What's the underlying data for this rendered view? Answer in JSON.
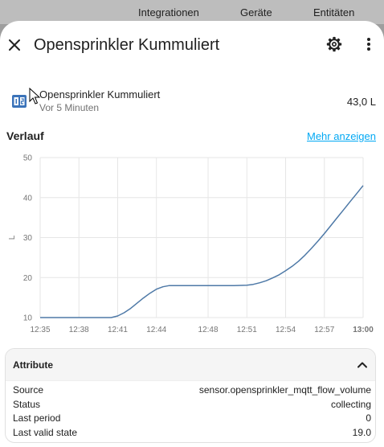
{
  "background_tabs": [
    "Integrationen",
    "Geräte",
    "Entitäten"
  ],
  "dialog": {
    "title": "Opensprinkler Kummuliert",
    "close_icon": "close-icon",
    "settings_icon": "gear-icon",
    "more_icon": "more-vert-icon"
  },
  "entity": {
    "icon": "meter-icon",
    "name": "Opensprinkler Kummuliert",
    "last_changed": "Vor 5 Minuten",
    "state": "43,0 L"
  },
  "history": {
    "title": "Verlauf",
    "more_link": "Mehr anzeigen"
  },
  "chart_data": {
    "type": "line",
    "ylabel": "L",
    "ylim": [
      10,
      50
    ],
    "yticks": [
      10,
      20,
      30,
      40,
      50
    ],
    "xlim": [
      0,
      25
    ],
    "xticks": [
      {
        "t": 0,
        "label": "12:35"
      },
      {
        "t": 3,
        "label": "12:38"
      },
      {
        "t": 6,
        "label": "12:41"
      },
      {
        "t": 9,
        "label": "12:44"
      },
      {
        "t": 13,
        "label": "12:48"
      },
      {
        "t": 16,
        "label": "12:51"
      },
      {
        "t": 19,
        "label": "12:54"
      },
      {
        "t": 22,
        "label": "12:57"
      },
      {
        "t": 25,
        "label": "13:00",
        "bold": true
      }
    ],
    "grid": true,
    "line_color": "#4e79a7",
    "series": [
      {
        "x": [
          0,
          5.5,
          6,
          6.5,
          7,
          7.5,
          8,
          8.5,
          9,
          9.5,
          10,
          11,
          12,
          13,
          14,
          15,
          16,
          16.5,
          17,
          17.5,
          18,
          18.5,
          19,
          19.5,
          20,
          20.5,
          21,
          21.5,
          22,
          22.5,
          23,
          23.5,
          24,
          24.5,
          25
        ],
        "y": [
          10,
          10,
          10.4,
          11.2,
          12.3,
          13.6,
          14.9,
          16.1,
          17.1,
          17.7,
          18,
          18,
          18,
          18,
          18,
          18,
          18.1,
          18.3,
          18.7,
          19.2,
          19.9,
          20.7,
          21.7,
          22.8,
          24.1,
          25.6,
          27.3,
          29.1,
          31,
          33,
          35,
          37,
          39,
          41,
          43
        ]
      }
    ]
  },
  "attributes": {
    "title": "Attribute",
    "chevron_icon": "chevron-up-icon",
    "rows": [
      {
        "key": "Source",
        "value": "sensor.opensprinkler_mqtt_flow_volume"
      },
      {
        "key": "Status",
        "value": "collecting"
      },
      {
        "key": "Last period",
        "value": "0"
      },
      {
        "key": "Last valid state",
        "value": "19.0"
      }
    ]
  }
}
